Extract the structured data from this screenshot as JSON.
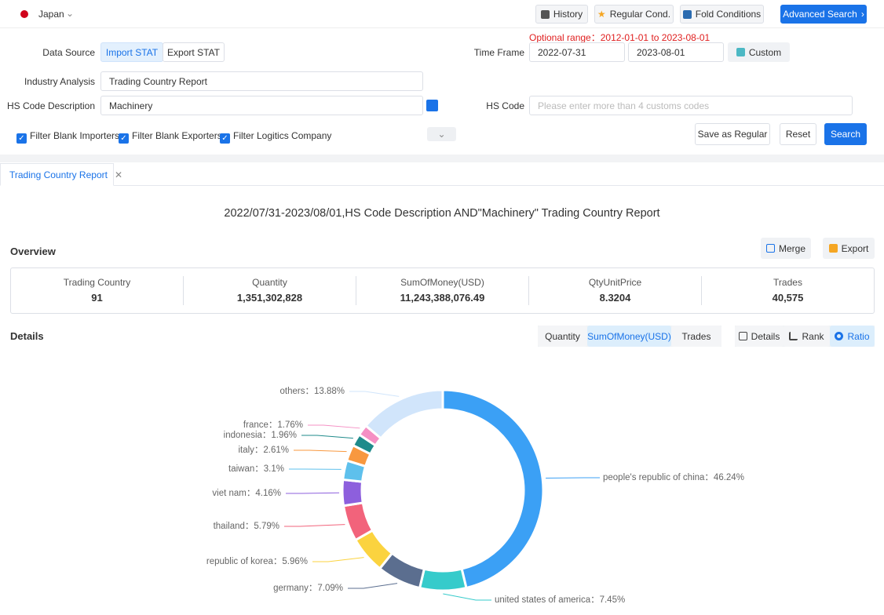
{
  "header": {
    "country": "Japan",
    "buttons": [
      "History",
      "Regular Cond.",
      "Fold Conditions",
      "Advanced Search"
    ]
  },
  "form": {
    "optional_range": "Optional range：2012-01-01 to 2023-08-01",
    "data_source_label": "Data Source",
    "data_sources": [
      "Import STAT",
      "Export STAT"
    ],
    "time_frame_label": "Time Frame",
    "start_date": "2022-07-31",
    "end_date": "2023-08-01",
    "custom": "Custom",
    "industry_label": "Industry Analysis",
    "industry_value": "Trading Country Report",
    "hs_desc_label": "HS Code Description",
    "hs_desc_value": "Machinery",
    "hs_code_label": "HS Code",
    "hs_code_placeholder": "Please enter more than 4 customs codes",
    "filters": [
      "Filter Blank Importers",
      "Filter Blank Exporters",
      "Filter Logitics Company"
    ],
    "actions": [
      "Save as Regular",
      "Reset",
      "Search"
    ]
  },
  "tab": "Trading Country Report",
  "report_title": "2022/07/31-2023/08/01,HS Code Description AND\"Machinery\" Trading Country Report",
  "overview": {
    "title": "Overview",
    "buttons": [
      "Merge",
      "Export"
    ],
    "stats": [
      {
        "label": "Trading Country",
        "value": "91"
      },
      {
        "label": "Quantity",
        "value": "1,351,302,828"
      },
      {
        "label": "SumOfMoney(USD)",
        "value": "11,243,388,076.49"
      },
      {
        "label": "QtyUnitPrice",
        "value": "8.3204"
      },
      {
        "label": "Trades",
        "value": "40,575"
      }
    ]
  },
  "details": {
    "title": "Details",
    "metrics": [
      "Quantity",
      "SumOfMoney(USD)",
      "Trades"
    ],
    "views": [
      "Details",
      "Rank",
      "Ratio"
    ]
  },
  "chart_data": {
    "type": "pie",
    "donut": true,
    "values": [
      46.24,
      7.45,
      7.09,
      5.96,
      5.79,
      4.16,
      3.1,
      2.61,
      1.96,
      1.76,
      13.88
    ],
    "value_labels": [
      "people's republic of china：46.24%",
      "united states of america：7.45%",
      "germany：7.09%",
      "republic of korea：5.96%",
      "thailand：5.79%",
      "viet nam：4.16%",
      "taiwan：3.1%",
      "italy：2.61%",
      "indonesia：1.96%",
      "france：1.76%",
      "others：13.88%"
    ],
    "colors": [
      "#3ba0f5",
      "#36cbcb",
      "#5b6e8f",
      "#fbd33f",
      "#f2637b",
      "#8d5fdd",
      "#5ec0ec",
      "#f8983f",
      "#1f8b8b",
      "#f590c4",
      "#d1e5fb"
    ]
  }
}
